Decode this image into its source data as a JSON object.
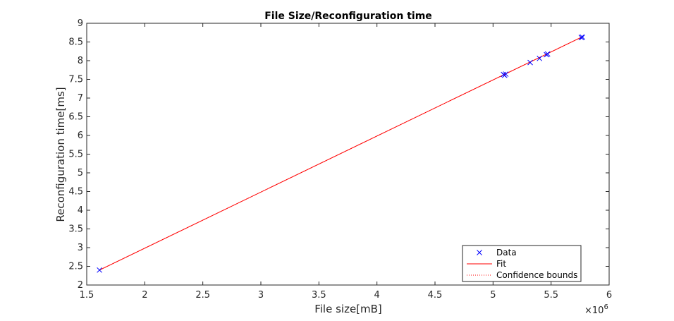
{
  "chart_data": {
    "type": "scatter",
    "title": "File Size/Reconfiguration time",
    "xlabel": "File size[mB]",
    "ylabel": "Reconfiguration time[ms]",
    "x_exponent_label": "×10",
    "x_exponent_power": "6",
    "xlim": [
      1.5,
      6
    ],
    "ylim": [
      2,
      9
    ],
    "x_ticks": [
      "1.5",
      "2",
      "2.5",
      "3",
      "3.5",
      "4",
      "4.5",
      "5",
      "5.5",
      "6"
    ],
    "x_tick_values": [
      1.5,
      2,
      2.5,
      3,
      3.5,
      4,
      4.5,
      5,
      5.5,
      6
    ],
    "y_ticks": [
      "2",
      "2.5",
      "3",
      "3.5",
      "4",
      "4.5",
      "5",
      "5.5",
      "6",
      "6.5",
      "7",
      "7.5",
      "8",
      "8.5",
      "9"
    ],
    "y_tick_values": [
      2,
      2.5,
      3,
      3.5,
      4,
      4.5,
      5,
      5.5,
      6,
      6.5,
      7,
      7.5,
      8,
      8.5,
      9
    ],
    "grid": false,
    "legend_position": "bottom-right",
    "series": [
      {
        "name": "Data",
        "kind": "markers",
        "marker": "x",
        "color": "#0000ff",
        "x": [
          1.61,
          5.09,
          5.1,
          5.11,
          5.32,
          5.4,
          5.46,
          5.47,
          5.76,
          5.77
        ],
        "y": [
          2.4,
          7.63,
          7.61,
          7.64,
          7.95,
          8.06,
          8.16,
          8.18,
          8.62,
          8.63
        ]
      },
      {
        "name": "Fit",
        "kind": "line",
        "color": "#ff0000",
        "x": [
          1.61,
          5.77
        ],
        "y": [
          2.4,
          8.64
        ]
      },
      {
        "name": "Confidence bounds",
        "kind": "dotted",
        "color": "#ff0000",
        "x": [
          1.61,
          5.77
        ],
        "y": [
          2.4,
          8.64
        ]
      }
    ]
  }
}
